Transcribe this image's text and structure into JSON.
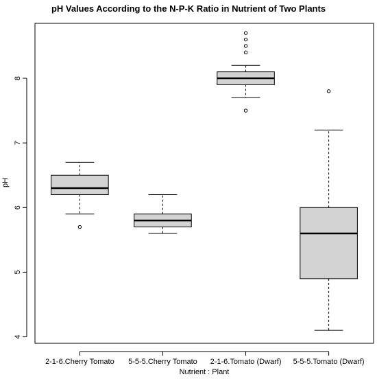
{
  "chart_data": {
    "type": "box",
    "title": "pH Values According to the N-P-K Ratio in Nutrient of Two Plants",
    "xlabel": "Nutrient : Plant",
    "ylabel": "pH",
    "ylim": [
      3.9,
      8.85
    ],
    "yticks": [
      4,
      5,
      6,
      7,
      8
    ],
    "grid": false,
    "colors": {
      "box_fill": "#d3d3d3",
      "stroke": "#000000"
    },
    "categories": [
      "2-1-6.Cherry Tomato",
      "5-5-5.Cherry Tomato",
      "2-1-6.Tomato (Dwarf)",
      "5-5-5.Tomato (Dwarf)"
    ],
    "boxes": [
      {
        "category": "2-1-6.Cherry Tomato",
        "whisker_low": 5.9,
        "q1": 6.2,
        "median": 6.3,
        "q3": 6.5,
        "whisker_high": 6.7,
        "outliers": [
          5.7
        ]
      },
      {
        "category": "5-5-5.Cherry Tomato",
        "whisker_low": 5.6,
        "q1": 5.7,
        "median": 5.8,
        "q3": 5.9,
        "whisker_high": 6.2,
        "outliers": []
      },
      {
        "category": "2-1-6.Tomato (Dwarf)",
        "whisker_low": 7.7,
        "q1": 7.9,
        "median": 8.0,
        "q3": 8.1,
        "whisker_high": 8.2,
        "outliers": [
          7.5,
          8.4,
          8.5,
          8.6,
          8.7
        ]
      },
      {
        "category": "5-5-5.Tomato (Dwarf)",
        "whisker_low": 4.1,
        "q1": 4.9,
        "median": 5.6,
        "q3": 6.0,
        "whisker_high": 7.2,
        "outliers": [
          7.8
        ]
      }
    ]
  }
}
